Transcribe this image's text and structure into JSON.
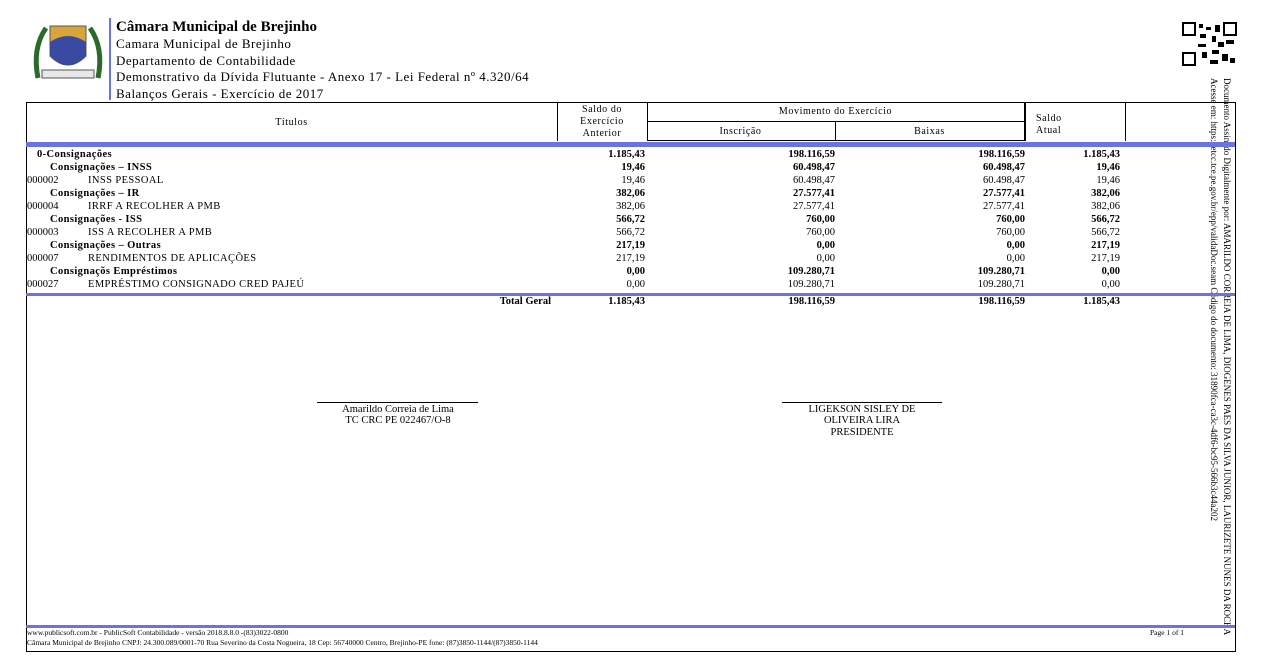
{
  "header": {
    "title": "Câmara Municipal de Brejinho",
    "lines": [
      "Camara Municipal de Brejinho",
      "Departamento de Contabilidade",
      "Demonstrativo da Dívida Flutuante - Anexo 17 - Lei Federal nº 4.320/64",
      "Balanços Gerais - Exercício de 2017"
    ]
  },
  "side_note": [
    "Documento Assinado Digitalmente por: AMARILDO CORREIA DE LIMA, DIOGENES PAES DA SILVA JUNIOR, LAURIZETE NUNES DA ROCHA",
    "Acesse em: https://etcc.tce.pe.gov.br/epp/validaDoc.seam Código do documento: 31890fca-ca3c-4df6-bc95-566b3c44a202"
  ],
  "table": {
    "columns": {
      "titulos": "Títulos",
      "saldo_anterior": "Saldo do Exercício Anterior",
      "movimento": "Movimento do Exercício",
      "inscricao": "Inscrição",
      "baixas": "Baixas",
      "saldo_atual": "Saldo Atual"
    },
    "rows": [
      {
        "label": "0-Consignações",
        "saldo_anterior": "1.185,43",
        "inscricao": "198.116,59",
        "baixas": "198.116,59",
        "saldo_atual": "1.185,43"
      },
      {
        "label": "Consignações – INSS",
        "saldo_anterior": "19,46",
        "inscricao": "60.498,47",
        "baixas": "60.498,47",
        "saldo_atual": "19,46"
      },
      {
        "code": "000002",
        "label": "INSS PESSOAL",
        "saldo_anterior": "19,46",
        "inscricao": "60.498,47",
        "baixas": "60.498,47",
        "saldo_atual": "19,46"
      },
      {
        "label": "Consignações – IR",
        "saldo_anterior": "382,06",
        "inscricao": "27.577,41",
        "baixas": "27.577,41",
        "saldo_atual": "382,06"
      },
      {
        "code": "000004",
        "label": "IRRF A RECOLHER A PMB",
        "saldo_anterior": "382,06",
        "inscricao": "27.577,41",
        "baixas": "27.577,41",
        "saldo_atual": "382,06"
      },
      {
        "label": "Consignações - ISS",
        "saldo_anterior": "566,72",
        "inscricao": "760,00",
        "baixas": "760,00",
        "saldo_atual": "566,72"
      },
      {
        "code": "000003",
        "label": "ISS A RECOLHER A PMB",
        "saldo_anterior": "566,72",
        "inscricao": "760,00",
        "baixas": "760,00",
        "saldo_atual": "566,72"
      },
      {
        "label": "Consignações – Outras",
        "saldo_anterior": "217,19",
        "inscricao": "0,00",
        "baixas": "0,00",
        "saldo_atual": "217,19"
      },
      {
        "code": "000007",
        "label": "RENDIMENTOS DE APLICAÇÕES",
        "saldo_anterior": "217,19",
        "inscricao": "0,00",
        "baixas": "0,00",
        "saldo_atual": "217,19"
      },
      {
        "label": "Consignaçõs Empréstimos",
        "saldo_anterior": "0,00",
        "inscricao": "109.280,71",
        "baixas": "109.280,71",
        "saldo_atual": "0,00"
      },
      {
        "code": "000027",
        "label": "EMPRÉSTIMO CONSIGNADO CRED PAJEÚ",
        "saldo_anterior": "0,00",
        "inscricao": "109.280,71",
        "baixas": "109.280,71",
        "saldo_atual": "0,00"
      }
    ],
    "total": {
      "label": "Total Geral",
      "saldo_anterior": "1.185,43",
      "inscricao": "198.116,59",
      "baixas": "198.116,59",
      "saldo_atual": "1.185,43"
    }
  },
  "signatures": [
    {
      "name": "Amarildo Correia de Lima",
      "role": "TC CRC PE 022467/O-8"
    },
    {
      "name": "LIGEKSON SISLEY DE OLIVEIRA LIRA",
      "role": "PRESIDENTE"
    }
  ],
  "footer": {
    "line1": "www.publicsoft.com.br - PublicSoft Contabilidade - versão 2018.8.8.0 -(83)3022-0800",
    "line2": "Câmara Municipal de Brejinho CNPJ: 24.300.089/0001-70 Rua Severino da Costa Nogueira, 18 Cep: 56740000 Centro, Brejinho-PE fone: (87)3850-1144/(87)3850-1144",
    "page": "Page 1 of 1"
  }
}
